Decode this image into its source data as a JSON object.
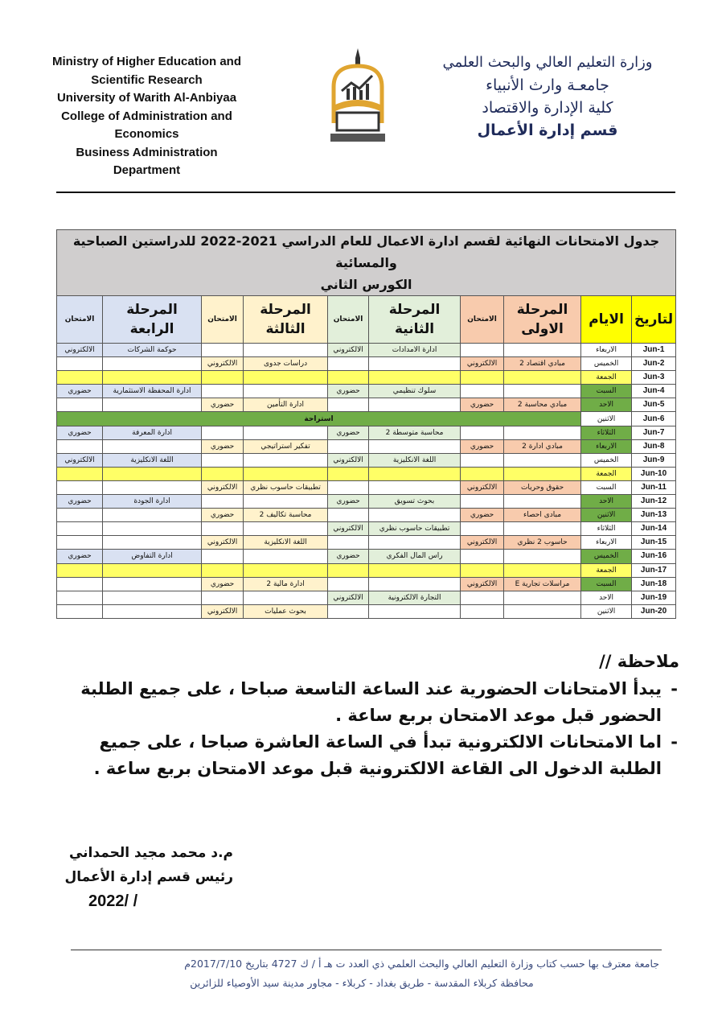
{
  "header": {
    "english_lines": [
      "Ministry of Higher Education and",
      "Scientific Research",
      "University of Warith Al-Anbiyaa",
      "College of Administration and",
      "Economics",
      "Business Administration",
      "Department"
    ],
    "arabic_lines": [
      "وزارة التعليم العالي والبحث العلمي",
      "جامعـة وارث الأنبياء",
      "كلية الإدارة والاقتصاد",
      "قسم إدارة الأعمال"
    ],
    "logo": {
      "text": "جامعة وارث الأنبياء - كلية الادارة والاقتصاد",
      "year": "2017",
      "colors": {
        "gold": "#e0a530",
        "dark": "#333333"
      }
    }
  },
  "table": {
    "title_line1": "جدول الامتحانات النهائية لقسم ادارة الاعمال للعام الدراسي 2021-2022 للدراستين الصباحية والمسائية",
    "title_line2": "الكورس الثاني",
    "headers": [
      "لتاريخ",
      "الايام",
      "المرحلة الاولى",
      "الامتحان",
      "المرحلة الثانية",
      "الامتحان",
      "المرحلة الثالثة",
      "الامتحان",
      "المرحلة الرابعة",
      "الامتحان"
    ],
    "colors": {
      "title": "#d0cece",
      "date_day": "#ffff00",
      "stage1": "#f8cbad",
      "stage2": "#e2efda",
      "stage3": "#fff2cc",
      "stage4": "#d9e1f2",
      "day_highlight": "#70ad47",
      "friday": "#ffff66",
      "rest": "#70ad47"
    },
    "rows": [
      {
        "cells": [
          "1-Jun",
          "الاربعاء",
          "",
          "",
          "ادارة الامدادات",
          "الالكتروني",
          "",
          "",
          "حوكمة الشركات",
          "الالكتروني"
        ]
      },
      {
        "cells": [
          "2-Jun",
          "الخميس",
          "مبادي اقتصاد 2",
          "الالكتروني",
          "",
          "",
          "دراسات جدوى",
          "الالكتروني",
          "",
          ""
        ]
      },
      {
        "type": "friday",
        "cells": [
          "3-Jun",
          "الجمعة",
          "",
          "",
          "",
          "",
          "",
          "",
          "",
          ""
        ]
      },
      {
        "day_highlight": true,
        "cells": [
          "4-Jun",
          "السبت",
          "",
          "",
          "سلوك تنظيمي",
          "حضوري",
          "",
          "",
          "ادارة المحفظة الاستثمارية",
          "حضوري"
        ]
      },
      {
        "day_highlight": true,
        "cells": [
          "5-Jun",
          "الاحد",
          "مبادي محاسبة 2",
          "حضوري",
          "",
          "",
          "ادارة التأمين",
          "حضوري",
          "",
          ""
        ]
      },
      {
        "type": "rest",
        "cells": [
          "6-Jun",
          "الاثنين"
        ],
        "rest_label": "استراحة"
      },
      {
        "day_highlight": true,
        "cells": [
          "7-Jun",
          "الثلاثاء",
          "",
          "",
          "محاسبة متوسطة 2",
          "حضوري",
          "",
          "",
          "ادارة المعرفة",
          "حضوري"
        ]
      },
      {
        "day_highlight": true,
        "cells": [
          "8-Jun",
          "الاربعاء",
          "مبادي ادارة 2",
          "حضوري",
          "",
          "",
          "تفكير استراتيجي",
          "حضوري",
          "",
          ""
        ]
      },
      {
        "cells": [
          "9-Jun",
          "الخميس",
          "",
          "",
          "اللغة الانكليزية",
          "الالكتروني",
          "",
          "",
          "اللغة الانكليزية",
          "الالكتروني"
        ]
      },
      {
        "type": "friday",
        "cells": [
          "10-Jun",
          "الجمعة",
          "",
          "",
          "",
          "",
          "",
          "",
          "",
          ""
        ]
      },
      {
        "cells": [
          "11-Jun",
          "السبت",
          "حقوق وحريات",
          "الالكتروني",
          "",
          "",
          "تطبيقات حاسوب نظري",
          "الالكتروني",
          "",
          ""
        ]
      },
      {
        "day_highlight": true,
        "cells": [
          "12-Jun",
          "الاحد",
          "",
          "",
          "بحوث تسويق",
          "حضوري",
          "",
          "",
          "ادارة الجودة",
          "حضوري"
        ]
      },
      {
        "day_highlight": true,
        "cells": [
          "13-Jun",
          "الاثنين",
          "مبادى احصاء",
          "حضوري",
          "",
          "",
          "محاسبة تكاليف 2",
          "حضوري",
          "",
          ""
        ]
      },
      {
        "cells": [
          "14-Jun",
          "الثلاثاء",
          "",
          "",
          "تطبيقات حاسوب نظري",
          "الالكتروني",
          "",
          "",
          "",
          ""
        ]
      },
      {
        "cells": [
          "15-Jun",
          "الاربعاء",
          "حاسوب 2 نظري",
          "الالكتروني",
          "",
          "",
          "اللغة الانكليزية",
          "الالكتروني",
          "",
          ""
        ]
      },
      {
        "day_highlight": true,
        "cells": [
          "16-Jun",
          "الخميس",
          "",
          "",
          "راس المال الفكري",
          "حضوري",
          "",
          "",
          "ادارة التفاوض",
          "حضوري"
        ]
      },
      {
        "type": "friday",
        "cells": [
          "17-Jun",
          "الجمعة",
          "",
          "",
          "",
          "",
          "",
          "",
          "",
          ""
        ]
      },
      {
        "day_highlight": true,
        "cells": [
          "18-Jun",
          "السبت",
          "مراسلات تجارية E",
          "الالكتروني",
          "",
          "",
          "ادارة مالية 2",
          "حضوري",
          "",
          ""
        ]
      },
      {
        "cells": [
          "19-Jun",
          "الاحد",
          "",
          "",
          "التجارة الالكترونية",
          "الالكتروني",
          "",
          "",
          "",
          ""
        ]
      },
      {
        "cells": [
          "20-Jun",
          "الاثنين",
          "",
          "",
          "",
          "",
          "بحوث عمليات",
          "الالكتروني",
          "",
          ""
        ]
      }
    ]
  },
  "notes": {
    "title": "ملاحظة //",
    "items": [
      "يبدأ الامتحانات الحضورية عند الساعة التاسعة صباحا ، على جميع الطلبة الحضور قبل موعد الامتحان بربع ساعة .",
      "اما الامتحانات الالكترونية تبدأ في الساعة العاشرة صباحا ، على جميع الطلبة الدخول الى القاعة الالكترونية قبل موعد الامتحان بربع ساعة ."
    ]
  },
  "signature": {
    "name": "م.د محمد مجيد الحمداني",
    "title": "رئيس قسم إدارة الأعمال",
    "date": "2022/      /"
  },
  "footer": {
    "line1": "جامعة معترف بها حسب كتاب وزارة التعليم العالي والبحث العلمي  ذي  العدد ت  هـ  أ / ك  4727  بتاريخ  2017/7/10م",
    "line2": "محافظة كربلاء المقدسة  - طريق بغداد - كربلاء  - مجاور مدينة سيد الأوصياء للزائرين"
  }
}
